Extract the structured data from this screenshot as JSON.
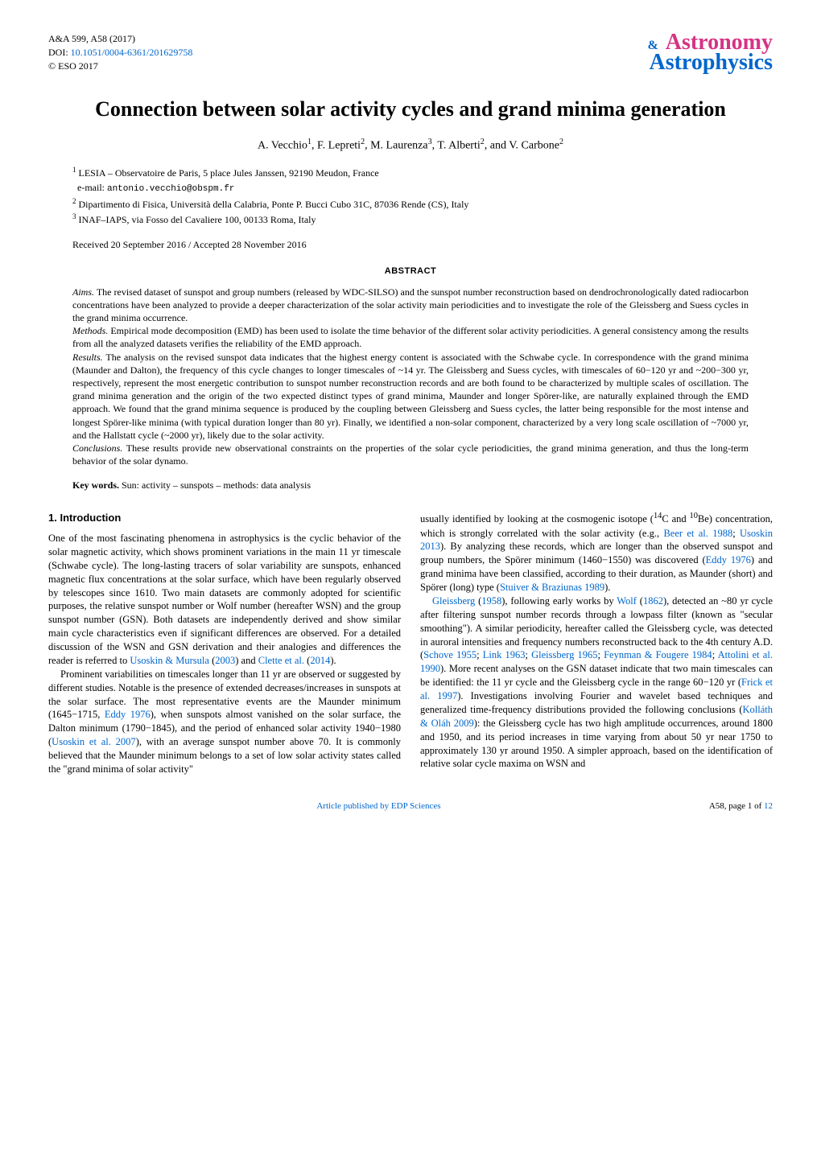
{
  "header": {
    "journal_ref": "A&A 599, A58 (2017)",
    "doi_prefix": "DOI: ",
    "doi": "10.1051/0004-6361/201629758",
    "copyright": "© ESO 2017"
  },
  "logo": {
    "top_a": "A",
    "top_rest": "stronomy",
    "amp": "&",
    "bottom_a": "A",
    "bottom_rest": "strophysics"
  },
  "title": "Connection between solar activity cycles and grand minima generation",
  "authors_html": "A. Vecchio<sup>1</sup>, F. Lepreti<sup>2</sup>, M. Laurenza<sup>3</sup>, T. Alberti<sup>2</sup>, and V. Carbone<sup>2</sup>",
  "affiliations": {
    "a1_sup": "1",
    "a1": "LESIA – Observatoire de Paris, 5 place Jules Janssen, 92190 Meudon, France",
    "email_label": "e-mail: ",
    "email": "antonio.vecchio@obspm.fr",
    "a2_sup": "2",
    "a2": "Dipartimento di Fisica, Università della Calabria, Ponte P. Bucci Cubo 31C, 87036 Rende (CS), Italy",
    "a3_sup": "3",
    "a3": "INAF–IAPS, via Fosso del Cavaliere 100, 00133 Roma, Italy"
  },
  "received": "Received 20 September 2016 / Accepted 28 November 2016",
  "abstract_heading": "ABSTRACT",
  "abstract": {
    "aims_label": "Aims.",
    "aims": " The revised dataset of sunspot and group numbers (released by WDC-SILSO) and the sunspot number reconstruction based on dendrochronologically dated radiocarbon concentrations have been analyzed to provide a deeper characterization of the solar activity main periodicities and to investigate the role of the Gleissberg and Suess cycles in the grand minima occurrence.",
    "methods_label": "Methods.",
    "methods": " Empirical mode decomposition (EMD) has been used to isolate the time behavior of the different solar activity periodicities. A general consistency among the results from all the analyzed datasets verifies the reliability of the EMD approach.",
    "results_label": "Results.",
    "results": " The analysis on the revised sunspot data indicates that the highest energy content is associated with the Schwabe cycle. In correspondence with the grand minima (Maunder and Dalton), the frequency of this cycle changes to longer timescales of ~14 yr. The Gleissberg and Suess cycles, with timescales of 60−120 yr and ~200−300 yr, respectively, represent the most energetic contribution to sunspot number reconstruction records and are both found to be characterized by multiple scales of oscillation. The grand minima generation and the origin of the two expected distinct types of grand minima, Maunder and longer Spörer-like, are naturally explained through the EMD approach. We found that the grand minima sequence is produced by the coupling between Gleissberg and Suess cycles, the latter being responsible for the most intense and longest Spörer-like minima (with typical duration longer than 80 yr). Finally, we identified a non-solar component, characterized by a very long scale oscillation of ~7000 yr, and the Hallstatt cycle (~2000 yr), likely due to the solar activity.",
    "conclusions_label": "Conclusions.",
    "conclusions": " These results provide new observational constraints on the properties of the solar cycle periodicities, the grand minima generation, and thus the long-term behavior of the solar dynamo."
  },
  "keywords": {
    "label": "Key words.",
    "text": " Sun: activity – sunspots – methods: data analysis"
  },
  "section1_heading": "1. Introduction",
  "col1": {
    "p1": "One of the most fascinating phenomena in astrophysics is the cyclic behavior of the solar magnetic activity, which shows prominent variations in the main 11 yr timescale (Schwabe cycle). The long-lasting tracers of solar variability are sunspots, enhanced magnetic flux concentrations at the solar surface, which have been regularly observed by telescopes since 1610. Two main datasets are commonly adopted for scientific purposes, the relative sunspot number or Wolf number (hereafter WSN) and the group sunspot number (GSN). Both datasets are independently derived and show similar main cycle characteristics even if significant differences are observed. For a detailed discussion of the WSN and GSN derivation and their analogies and differences the reader is referred to ",
    "c1": "Usoskin & Mursula",
    "c1y": " (2003)",
    "p1b": " and ",
    "c2": "Clette et al.",
    "c2y": " (2014).",
    "p2a": "Prominent variabilities on timescales longer than 11 yr are observed or suggested by different studies. Notable is the presence of extended decreases/increases in sunspots at the solar surface. The most representative events are the Maunder minimum (1645−1715, ",
    "c3": "Eddy 1976",
    "p2b": "), when sunspots almost vanished on the solar surface, the Dalton minimum (1790−1845), and the period of enhanced solar activity 1940−1980 (",
    "c4": "Usoskin et al. 2007",
    "p2c": "), with an average sunspot number above 70. It is commonly believed that the Maunder minimum belongs to a set of low solar activity states called the \"grand minima of solar activity\""
  },
  "col2": {
    "p1a": "usually identified by looking at the cosmogenic isotope (",
    "sup14": "14",
    "p1a2": "C and ",
    "sup10": "10",
    "p1b": "Be) concentration, which is strongly correlated with the solar activity (e.g., ",
    "c1": "Beer et al. 1988",
    "p1c": "; ",
    "c2": "Usoskin 2013",
    "p1d": "). By analyzing these records, which are longer than the observed sunspot and group numbers, the Spörer minimum (1460−1550) was discovered (",
    "c3": "Eddy 1976",
    "p1e": ") and grand minima have been classified, according to their duration, as Maunder (short) and Spörer (long) type (",
    "c4": "Stuiver & Braziunas 1989",
    "p1f": ").",
    "p2a_c": "Gleissberg",
    "p2a": " (",
    "p2a_y": "1958",
    "p2b": "), following early works by ",
    "c5": "Wolf",
    "p2c": " (",
    "c5y": "1862",
    "p2d": "), detected an ~80 yr cycle after filtering sunspot number records through a lowpass filter (known as \"secular smoothing\"). A similar periodicity, hereafter called the Gleissberg cycle, was detected in auroral intensities and frequency numbers reconstructed back to the 4th century A.D. (",
    "c6": "Schove 1955",
    "p2e": "; ",
    "c7": "Link 1963",
    "p2f": "; ",
    "c8": "Gleissberg 1965",
    "p2g": "; ",
    "c9": "Feynman & Fougere 1984",
    "p2h": "; ",
    "c10": "Attolini et al. 1990",
    "p2i": "). More recent analyses on the GSN dataset indicate that two main timescales can be identified: the 11 yr cycle and the Gleissberg cycle in the range 60−120 yr (",
    "c11": "Frick et al. 1997",
    "p2j": "). Investigations involving Fourier and wavelet based techniques and generalized time-frequency distributions provided the following conclusions (",
    "c12": "Kolláth & Oláh 2009",
    "p2k": "): the Gleissberg cycle has two high amplitude occurrences, around 1800 and 1950, and its period increases in time varying from about 50 yr near 1750 to approximately 130 yr around 1950. A simpler approach, based on the identification of relative solar cycle maxima on WSN and"
  },
  "footer": {
    "center": "Article published by EDP Sciences",
    "right": "A58, page 1 of ",
    "right_link": "12"
  }
}
